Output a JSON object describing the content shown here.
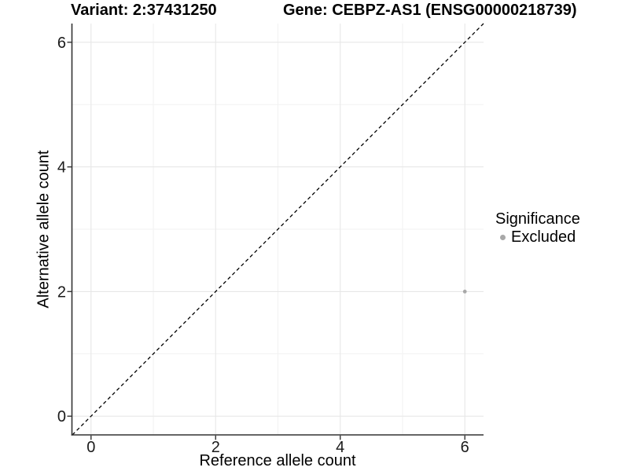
{
  "header": {
    "variant_title": "Variant: 2:37431250",
    "gene_title": "Gene: CEBPZ-AS1 (ENSG00000218739)"
  },
  "chart_data": {
    "type": "scatter",
    "title": "",
    "xlabel": "Reference allele count",
    "ylabel": "Alternative allele count",
    "xlim": [
      -0.3,
      6.3
    ],
    "ylim": [
      -0.3,
      6.3
    ],
    "x_ticks": [
      0,
      2,
      4,
      6
    ],
    "y_ticks": [
      0,
      2,
      4,
      6
    ],
    "x_minor_gridlines": [
      1,
      3,
      5
    ],
    "y_minor_gridlines": [
      1,
      3,
      5
    ],
    "grid": true,
    "points": [
      {
        "x": 6,
        "y": 2,
        "series": "Excluded"
      }
    ],
    "reference_line": {
      "kind": "identity",
      "intercept": 0,
      "slope": 1,
      "style": "dashed",
      "color": "#000000"
    },
    "legend": {
      "title": "Significance",
      "position": "right",
      "items": [
        {
          "label": "Excluded",
          "color": "#a8a8a8",
          "marker": "circle"
        }
      ]
    },
    "colors": {
      "point": "#a8a8a8",
      "axis_line": "#333333",
      "tick_text": "#1a1a1a",
      "grid_major": "#e7e7e7",
      "grid_minor": "#f2f2f2",
      "background": "#ffffff"
    }
  }
}
